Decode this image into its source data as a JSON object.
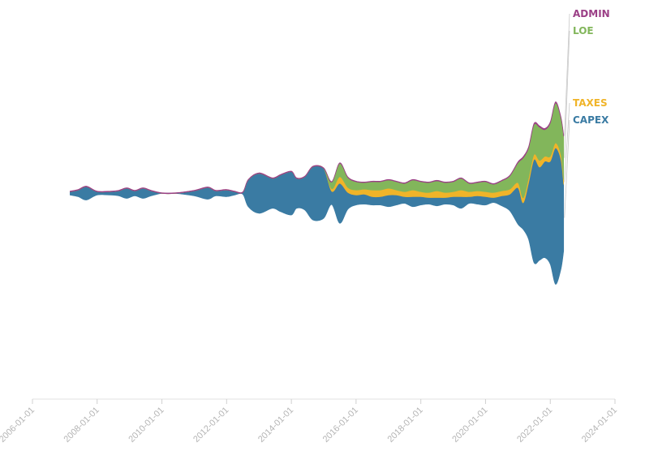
{
  "chart_data": {
    "type": "area",
    "stacked": true,
    "offset": "silhouette",
    "x_axis_ticks": [
      "2006-01-01",
      "2008-01-01",
      "2010-01-01",
      "2012-01-01",
      "2014-01-01",
      "2016-01-01",
      "2018-01-01",
      "2020-01-01",
      "2022-01-01",
      "2024-01-01"
    ],
    "x_range": [
      "2006-01-01",
      "2024-01-01"
    ],
    "y_axis_visible": false,
    "grid": false,
    "legend_placement": "right, at end of series",
    "colors": {
      "ADMIN": "#9b3f86",
      "LOE": "#82b65b",
      "TAXES": "#f0b429",
      "CAPEX": "#3a7ba3"
    },
    "x": [
      "2007-03-01",
      "2007-06-01",
      "2007-09-01",
      "2008-01-01",
      "2008-06-01",
      "2008-09-01",
      "2008-12-01",
      "2009-03-01",
      "2009-06-01",
      "2009-09-01",
      "2010-01-01",
      "2010-06-01",
      "2011-01-01",
      "2011-06-01",
      "2011-09-01",
      "2012-01-01",
      "2012-04-01",
      "2012-07-01",
      "2012-09-01",
      "2013-01-01",
      "2013-06-01",
      "2013-09-01",
      "2014-01-01",
      "2014-03-01",
      "2014-06-01",
      "2014-09-01",
      "2015-01-01",
      "2015-04-01",
      "2015-07-01",
      "2015-10-01",
      "2016-01-01",
      "2016-04-01",
      "2016-07-01",
      "2016-10-01",
      "2017-01-01",
      "2017-04-01",
      "2017-07-01",
      "2017-10-01",
      "2018-01-01",
      "2018-04-01",
      "2018-07-01",
      "2018-10-01",
      "2019-01-01",
      "2019-04-01",
      "2019-07-01",
      "2019-10-01",
      "2020-01-01",
      "2020-04-01",
      "2020-07-01",
      "2020-10-01",
      "2021-01-01",
      "2021-03-01",
      "2021-05-01",
      "2021-07-01",
      "2021-09-01",
      "2021-11-01",
      "2022-01-01",
      "2022-03-01",
      "2022-05-01",
      "2022-06-01"
    ],
    "series": [
      {
        "name": "CAPEX",
        "values": [
          2,
          4,
          8,
          2,
          2,
          3,
          6,
          3,
          6,
          3,
          0,
          0,
          3,
          7,
          3,
          4,
          2,
          1,
          16,
          24,
          18,
          22,
          26,
          18,
          20,
          32,
          30,
          8,
          24,
          10,
          6,
          6,
          5,
          5,
          7,
          6,
          4,
          6,
          5,
          4,
          5,
          4,
          5,
          7,
          4,
          5,
          5,
          3,
          6,
          10,
          22,
          16,
          34,
          62,
          56,
          58,
          62,
          82,
          66,
          40
        ]
      },
      {
        "name": "TAXES",
        "values": [
          0,
          0,
          0,
          0,
          0,
          0,
          0,
          0,
          0,
          0,
          0,
          0,
          0,
          0,
          0,
          0,
          0,
          0,
          0,
          0,
          0,
          0,
          0,
          0,
          0,
          0,
          0,
          1.5,
          4,
          3,
          3,
          3,
          4,
          4,
          4,
          3,
          3,
          4,
          3,
          3,
          4,
          3,
          3,
          4,
          3,
          3,
          3,
          3,
          3,
          3,
          3,
          3,
          3,
          3,
          4,
          3,
          3,
          3,
          3,
          3
        ]
      },
      {
        "name": "LOE",
        "values": [
          0,
          0,
          0,
          0,
          0,
          0,
          0,
          0,
          0,
          0,
          0,
          0,
          0,
          0,
          0,
          0,
          0,
          0,
          0,
          0,
          0,
          0,
          0,
          0,
          0,
          0,
          0,
          4,
          8,
          6,
          5,
          4,
          5,
          5,
          5,
          5,
          5,
          6,
          6,
          6,
          6,
          6,
          6,
          7,
          5,
          5,
          6,
          5,
          6,
          8,
          12,
          24,
          18,
          18,
          20,
          16,
          20,
          24,
          22,
          26
        ]
      },
      {
        "name": "ADMIN",
        "values": [
          0.4,
          0.4,
          0.4,
          0.4,
          0.4,
          0.4,
          0.4,
          0.4,
          0.4,
          0.4,
          0.4,
          0.4,
          0.4,
          0.4,
          0.4,
          0.4,
          0.4,
          0.4,
          0.4,
          0.4,
          0.4,
          0.4,
          0.4,
          0.4,
          0.4,
          0.4,
          0.4,
          0.4,
          0.4,
          0.4,
          0.4,
          0.4,
          0.4,
          0.4,
          0.4,
          0.4,
          0.4,
          0.4,
          0.4,
          0.4,
          0.4,
          0.4,
          0.4,
          0.4,
          0.4,
          0.4,
          0.4,
          0.4,
          0.4,
          0.4,
          0.6,
          0.8,
          0.8,
          0.8,
          0.8,
          0.8,
          0.8,
          0.8,
          0.8,
          0.8
        ]
      }
    ]
  }
}
